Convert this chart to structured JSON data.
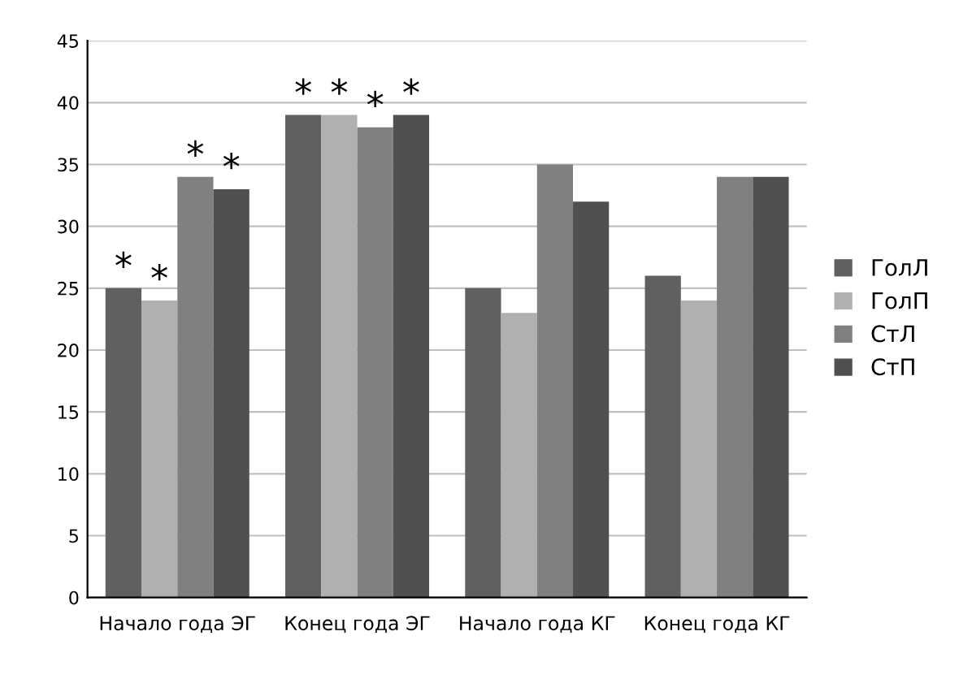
{
  "chart_data": {
    "type": "bar",
    "categories": [
      "Начало года ЭГ",
      "Конец года ЭГ",
      "Начало года КГ",
      "Конец года КГ"
    ],
    "series": [
      {
        "name": "ГолЛ",
        "color": "#606060",
        "values": [
          25,
          39,
          25,
          26
        ]
      },
      {
        "name": "ГолП",
        "color": "#b0b0b0",
        "values": [
          24,
          39,
          23,
          24
        ]
      },
      {
        "name": "СтЛ",
        "color": "#808080",
        "values": [
          34,
          38,
          35,
          34
        ]
      },
      {
        "name": "СтП",
        "color": "#505050",
        "values": [
          33,
          39,
          32,
          34
        ]
      }
    ],
    "annotations": [
      {
        "text": "*",
        "x": "Начало года ЭГ",
        "y": 25
      },
      {
        "text": "*",
        "x": "Начало года ЭГ",
        "y": 24
      },
      {
        "text": "*",
        "x": "Начало года ЭГ",
        "y": 34
      },
      {
        "text": "*",
        "x": "Начало года ЭГ",
        "y": 33
      },
      {
        "text": "*",
        "x": "Конец года ЭГ",
        "y": 39
      },
      {
        "text": "*",
        "x": "Конец года ЭГ",
        "y": 39
      },
      {
        "text": "*",
        "x": "Конец года ЭГ",
        "y": 38
      },
      {
        "text": "*",
        "x": "Конец года ЭГ",
        "y": 39
      }
    ],
    "ylim": [
      0,
      45
    ],
    "yticks": [
      0,
      5,
      10,
      15,
      20,
      25,
      30,
      35,
      40,
      45
    ],
    "grid": "y",
    "legend": "right"
  }
}
